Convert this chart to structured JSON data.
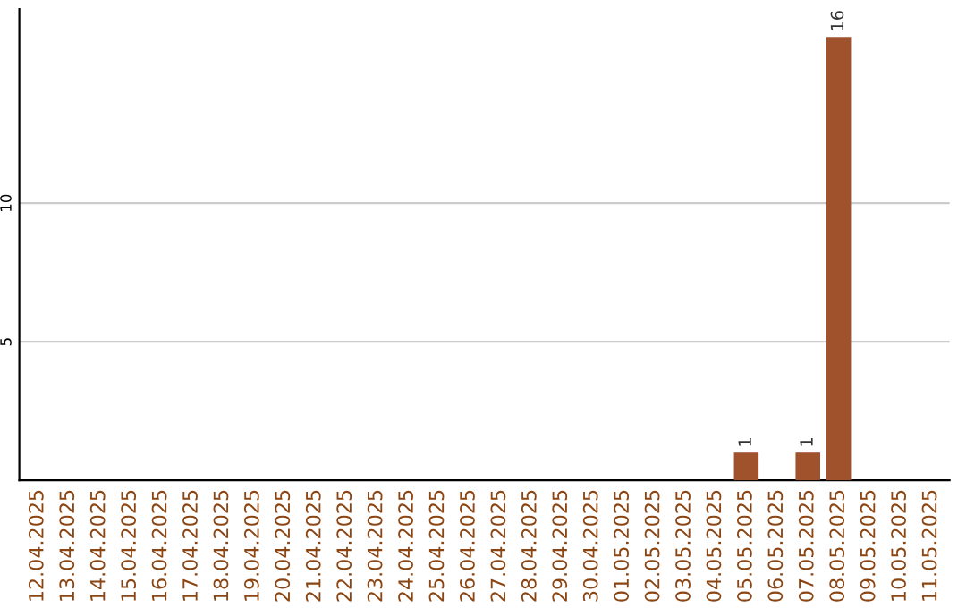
{
  "chart_data": {
    "type": "bar",
    "categories": [
      "12.04.2025",
      "13.04.2025",
      "14.04.2025",
      "15.04.2025",
      "16.04.2025",
      "17.04.2025",
      "18.04.2025",
      "19.04.2025",
      "20.04.2025",
      "21.04.2025",
      "22.04.2025",
      "23.04.2025",
      "24.04.2025",
      "25.04.2025",
      "26.04.2025",
      "27.04.2025",
      "28.04.2025",
      "29.04.2025",
      "30.04.2025",
      "01.05.2025",
      "02.05.2025",
      "03.05.2025",
      "04.05.2025",
      "05.05.2025",
      "06.05.2025",
      "07.05.2025",
      "08.05.2025",
      "09.05.2025",
      "10.05.2025",
      "11.05.2025"
    ],
    "values": [
      0,
      0,
      0,
      0,
      0,
      0,
      0,
      0,
      0,
      0,
      0,
      0,
      0,
      0,
      0,
      0,
      0,
      0,
      0,
      0,
      0,
      0,
      0,
      1,
      0,
      1,
      16,
      0,
      0,
      0
    ],
    "value_labels": [
      null,
      null,
      null,
      null,
      null,
      null,
      null,
      null,
      null,
      null,
      null,
      null,
      null,
      null,
      null,
      null,
      null,
      null,
      null,
      null,
      null,
      null,
      null,
      "1",
      null,
      "1",
      "16",
      null,
      null,
      null
    ],
    "color": "#a0522d",
    "ylim": [
      0,
      17
    ],
    "yticks": [
      5,
      10
    ],
    "grid": "y"
  }
}
